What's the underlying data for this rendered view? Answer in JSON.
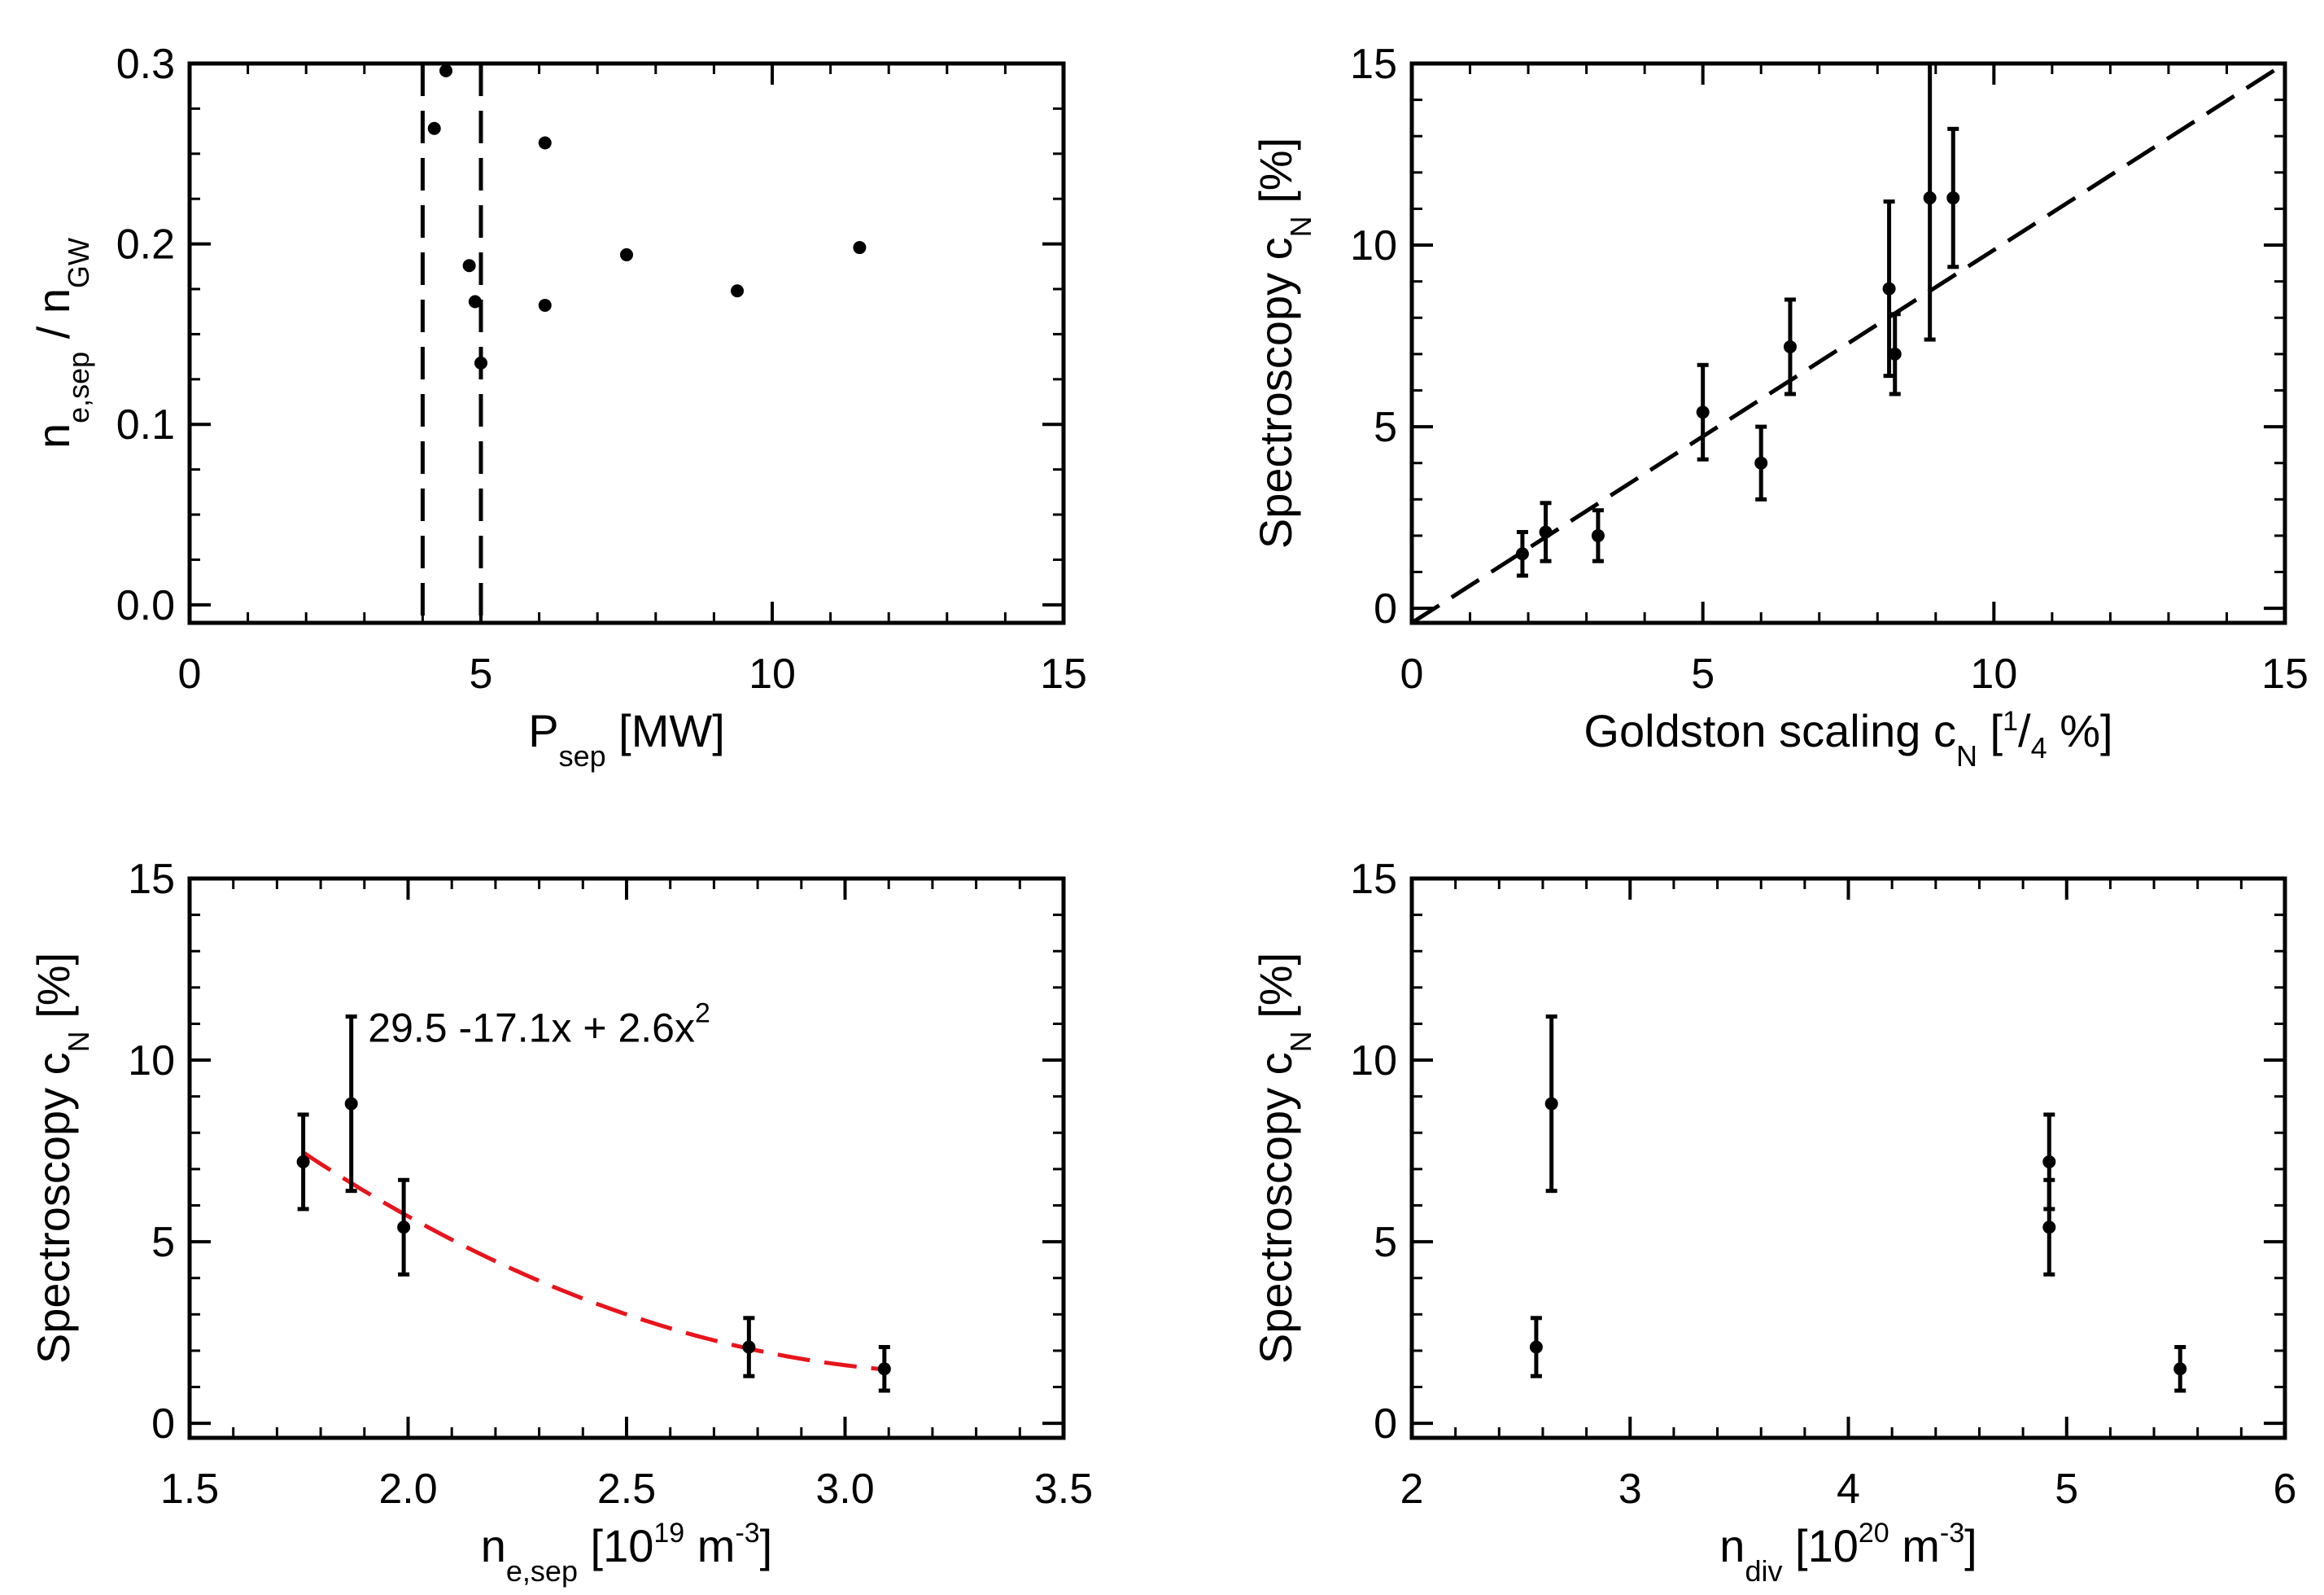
{
  "chart_data": [
    {
      "type": "scatter",
      "xlabel": {
        "main": "P",
        "sub": "sep",
        "rest": " [MW]"
      },
      "ylabel": {
        "a": "n",
        "a_sub": "e,sep",
        "b": " / n",
        "b_sub": "GW"
      },
      "xlim": [
        0,
        15
      ],
      "ylim": [
        -0.01,
        0.3
      ],
      "xticks": [
        0,
        5,
        10,
        15
      ],
      "xtick_labels": [
        "0",
        "5",
        "10",
        "15"
      ],
      "yticks": [
        0.0,
        0.1,
        0.2,
        0.3
      ],
      "ytick_labels": [
        "0.0",
        "0.1",
        "0.2",
        "0.3"
      ],
      "points": [
        {
          "x": 4.2,
          "y": 0.264
        },
        {
          "x": 4.4,
          "y": 0.296
        },
        {
          "x": 4.8,
          "y": 0.188
        },
        {
          "x": 4.9,
          "y": 0.168
        },
        {
          "x": 5.0,
          "y": 0.134
        },
        {
          "x": 6.1,
          "y": 0.256
        },
        {
          "x": 6.1,
          "y": 0.166
        },
        {
          "x": 7.5,
          "y": 0.194
        },
        {
          "x": 9.4,
          "y": 0.174
        },
        {
          "x": 11.5,
          "y": 0.198
        }
      ],
      "vlines": [
        4.0,
        5.0
      ]
    },
    {
      "type": "scatter",
      "xlabel": {
        "main": "Goldston scaling c",
        "sub": "N",
        "pre_frac": " [",
        "frac_num": "1",
        "frac_slash": "/",
        "frac_den": "4",
        "rest": " %]"
      },
      "ylabel": {
        "a": "Spectroscopy c",
        "a_sub": "N",
        "b": " [%]"
      },
      "xlim": [
        0,
        15
      ],
      "ylim": [
        -0.4,
        15
      ],
      "xticks": [
        0,
        5,
        10,
        15
      ],
      "xtick_labels": [
        "0",
        "5",
        "10",
        "15"
      ],
      "yticks": [
        0,
        5,
        10,
        15
      ],
      "ytick_labels": [
        "0",
        "5",
        "10",
        "15"
      ],
      "points": [
        {
          "x": 1.9,
          "y": 1.5,
          "err": 0.6
        },
        {
          "x": 2.3,
          "y": 2.1,
          "err": 0.8
        },
        {
          "x": 3.2,
          "y": 2.0,
          "err": 0.7
        },
        {
          "x": 5.0,
          "y": 5.4,
          "err": 1.3
        },
        {
          "x": 6.0,
          "y": 4.0,
          "err": 1.0
        },
        {
          "x": 6.5,
          "y": 7.2,
          "err": 1.3
        },
        {
          "x": 8.2,
          "y": 8.8,
          "err": 2.4
        },
        {
          "x": 8.3,
          "y": 7.0,
          "err": 1.1
        },
        {
          "x": 8.9,
          "y": 11.3,
          "err": 3.9
        },
        {
          "x": 9.3,
          "y": 11.3,
          "err": 1.9
        }
      ],
      "reference_line": {
        "x": [
          0,
          15
        ],
        "y": [
          -0.4,
          15
        ]
      }
    },
    {
      "type": "scatter",
      "xlabel": {
        "main": "n",
        "sub": "e,sep",
        "rest": " [10",
        "sup": "19",
        "rest2": " m",
        "sup2": "-3",
        "rest3": "]"
      },
      "ylabel": {
        "a": "Spectroscopy c",
        "a_sub": "N",
        "b": " [%]"
      },
      "xlim": [
        1.5,
        3.5
      ],
      "ylim": [
        -0.4,
        15
      ],
      "xticks": [
        1.5,
        2.0,
        2.5,
        3.0,
        3.5
      ],
      "xtick_labels": [
        "1.5",
        "2.0",
        "2.5",
        "3.0",
        "3.5"
      ],
      "yticks": [
        0,
        5,
        10,
        15
      ],
      "ytick_labels": [
        "0",
        "5",
        "10",
        "15"
      ],
      "points": [
        {
          "x": 1.76,
          "y": 7.2,
          "err": 1.3
        },
        {
          "x": 1.87,
          "y": 8.8,
          "err": 2.4
        },
        {
          "x": 1.99,
          "y": 5.4,
          "err": 1.3
        },
        {
          "x": 2.78,
          "y": 2.1,
          "err": 0.8
        },
        {
          "x": 3.09,
          "y": 1.5,
          "err": 0.6
        }
      ],
      "fit": {
        "coeffs": [
          29.5,
          -17.1,
          2.6
        ],
        "x_range": [
          1.76,
          3.09
        ],
        "color": "#e8141c"
      },
      "annotation": {
        "text": "29.5  -17.1x + 2.6x",
        "sup": "2"
      }
    },
    {
      "type": "scatter",
      "xlabel": {
        "main": "n",
        "sub": "div",
        "rest": " [10",
        "sup": "20",
        "rest2": " m",
        "sup2": "-3",
        "rest3": "]"
      },
      "ylabel": {
        "a": "Spectroscopy c",
        "a_sub": "N",
        "b": " [%]"
      },
      "xlim": [
        2,
        6
      ],
      "ylim": [
        -0.4,
        15
      ],
      "xticks": [
        2,
        3,
        4,
        5,
        6
      ],
      "xtick_labels": [
        "2",
        "3",
        "4",
        "5",
        "6"
      ],
      "yticks": [
        0,
        5,
        10,
        15
      ],
      "ytick_labels": [
        "0",
        "5",
        "10",
        "15"
      ],
      "points": [
        {
          "x": 2.57,
          "y": 2.1,
          "err": 0.8
        },
        {
          "x": 2.64,
          "y": 8.8,
          "err": 2.4
        },
        {
          "x": 4.92,
          "y": 7.2,
          "err": 1.3
        },
        {
          "x": 4.92,
          "y": 5.4,
          "err": 1.3
        },
        {
          "x": 5.52,
          "y": 1.5,
          "err": 0.6
        }
      ]
    }
  ]
}
